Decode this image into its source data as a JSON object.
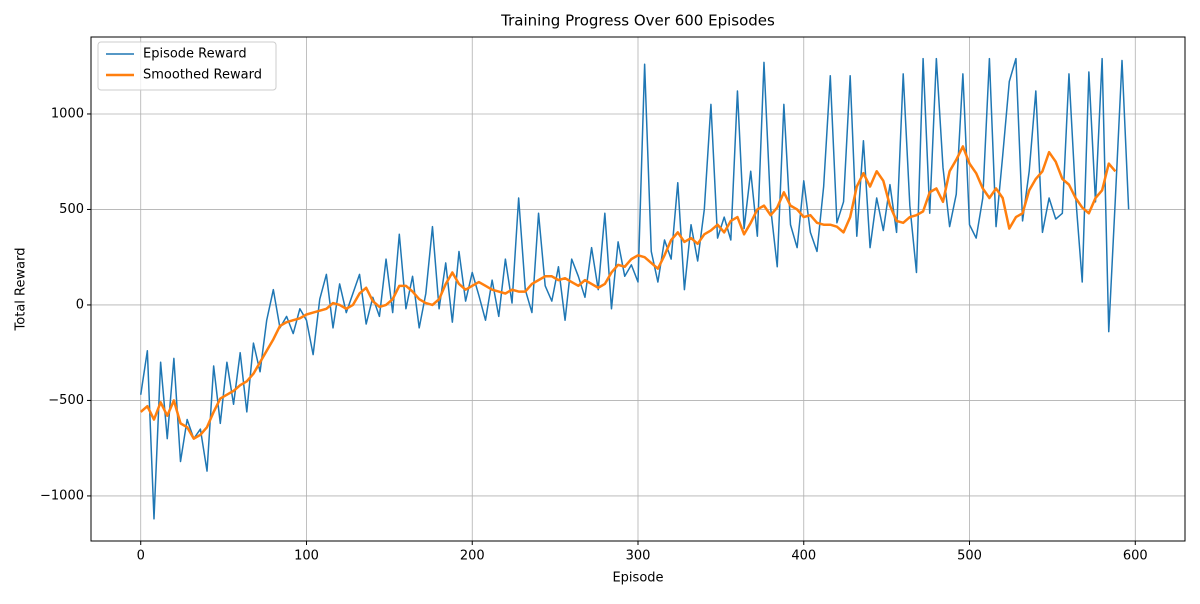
{
  "chart_data": {
    "type": "line",
    "title": "Training Progress Over 600 Episodes",
    "x_label": "Episode",
    "y_label": "Total Reward",
    "x": [
      0,
      4,
      8,
      12,
      16,
      20,
      24,
      28,
      32,
      36,
      40,
      44,
      48,
      52,
      56,
      60,
      64,
      68,
      72,
      76,
      80,
      84,
      88,
      92,
      96,
      100,
      104,
      108,
      112,
      116,
      120,
      124,
      128,
      132,
      136,
      140,
      144,
      148,
      152,
      156,
      160,
      164,
      168,
      172,
      176,
      180,
      184,
      188,
      192,
      196,
      200,
      204,
      208,
      212,
      216,
      220,
      224,
      228,
      232,
      236,
      240,
      244,
      248,
      252,
      256,
      260,
      264,
      268,
      272,
      276,
      280,
      284,
      288,
      292,
      296,
      300,
      304,
      308,
      312,
      316,
      320,
      324,
      328,
      332,
      336,
      340,
      344,
      348,
      352,
      356,
      360,
      364,
      368,
      372,
      376,
      380,
      384,
      388,
      392,
      396,
      400,
      404,
      408,
      412,
      416,
      420,
      424,
      428,
      432,
      436,
      440,
      444,
      448,
      452,
      456,
      460,
      464,
      468,
      472,
      476,
      480,
      484,
      488,
      492,
      496,
      500,
      504,
      508,
      512,
      516,
      520,
      524,
      528,
      532,
      536,
      540,
      544,
      548,
      552,
      556,
      560,
      564,
      568,
      572,
      576,
      580,
      584,
      588,
      592,
      596
    ],
    "series": [
      {
        "name": "Episode Reward",
        "color": "#1f77b4",
        "width": 1.5,
        "values": [
          -470,
          -240,
          -1120,
          -300,
          -700,
          -280,
          -820,
          -600,
          -700,
          -650,
          -870,
          -320,
          -620,
          -300,
          -520,
          -250,
          -560,
          -200,
          -350,
          -80,
          80,
          -120,
          -60,
          -150,
          -20,
          -80,
          -260,
          30,
          160,
          -120,
          110,
          -40,
          60,
          160,
          -100,
          40,
          -60,
          240,
          -40,
          370,
          -20,
          150,
          -120,
          60,
          410,
          -20,
          220,
          -90,
          280,
          20,
          170,
          50,
          -80,
          130,
          -60,
          240,
          10,
          560,
          80,
          -40,
          480,
          100,
          20,
          200,
          -80,
          240,
          150,
          40,
          300,
          80,
          480,
          -20,
          330,
          150,
          210,
          120,
          1260,
          280,
          120,
          340,
          240,
          640,
          80,
          420,
          230,
          500,
          1050,
          350,
          460,
          340,
          1120,
          400,
          700,
          360,
          1270,
          510,
          200,
          1050,
          420,
          300,
          650,
          380,
          280,
          620,
          1200,
          430,
          540,
          1200,
          360,
          860,
          300,
          560,
          390,
          630,
          380,
          1210,
          520,
          170,
          1290,
          480,
          1290,
          720,
          410,
          580,
          1210,
          420,
          350,
          560,
          1290,
          410,
          780,
          1170,
          1290,
          440,
          700,
          1120,
          380,
          560,
          450,
          480,
          1210,
          570,
          120,
          1220,
          540,
          1290,
          -140,
          560,
          1280,
          500
        ]
      },
      {
        "name": "Smoothed Reward",
        "color": "#ff7f0e",
        "width": 2.5,
        "values": [
          -560,
          -530,
          -600,
          -510,
          -580,
          -500,
          -620,
          -640,
          -700,
          -680,
          -640,
          -560,
          -490,
          -470,
          -450,
          -420,
          -400,
          -360,
          -300,
          -240,
          -180,
          -110,
          -90,
          -80,
          -70,
          -50,
          -40,
          -30,
          -20,
          10,
          0,
          -20,
          0,
          60,
          90,
          20,
          -10,
          0,
          30,
          100,
          100,
          70,
          30,
          10,
          0,
          30,
          110,
          170,
          110,
          80,
          100,
          120,
          100,
          80,
          70,
          60,
          80,
          70,
          70,
          110,
          130,
          150,
          150,
          130,
          140,
          120,
          100,
          130,
          110,
          90,
          110,
          170,
          210,
          200,
          240,
          260,
          250,
          220,
          190,
          260,
          340,
          380,
          330,
          350,
          320,
          370,
          390,
          420,
          380,
          440,
          460,
          370,
          430,
          500,
          520,
          470,
          510,
          590,
          520,
          500,
          460,
          470,
          430,
          420,
          420,
          410,
          380,
          460,
          620,
          690,
          620,
          700,
          650,
          520,
          440,
          430,
          460,
          470,
          490,
          590,
          610,
          540,
          700,
          760,
          830,
          740,
          690,
          610,
          560,
          610,
          560,
          400,
          460,
          480,
          600,
          660,
          700,
          800,
          750,
          660,
          630,
          560,
          510,
          480,
          560,
          600,
          740,
          700,
          null,
          null
        ]
      }
    ],
    "xlim": [
      -30,
      630
    ],
    "ylim": [
      -1236,
      1403
    ],
    "xticks": [
      0,
      100,
      200,
      300,
      400,
      500,
      600
    ],
    "yticks": [
      {
        "value": -1000,
        "label": "−1000"
      },
      {
        "value": -500,
        "label": "−500"
      },
      0,
      500,
      1000
    ],
    "grid": true,
    "legend": "upper left"
  }
}
